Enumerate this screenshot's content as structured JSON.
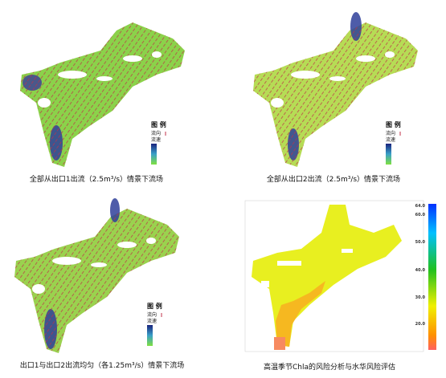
{
  "panels": [
    {
      "caption": "全部从出口1出流（2.5m³/s）情景下流场",
      "legend_title": "图 例",
      "legend_direction": "流向",
      "legend_speed": "流速"
    },
    {
      "caption": "全部从出口2出流（2.5m³/s）情景下流场",
      "legend_title": "图 例",
      "legend_direction": "流向",
      "legend_speed": "流速"
    },
    {
      "caption": "出口1与出口2出流均匀（各1.25m³/s）情景下流场",
      "legend_title": "图 例",
      "legend_direction": "流向",
      "legend_speed": "流速"
    },
    {
      "caption": "高温季节Chla的风险分析与水华风险评估",
      "colorbar_ticks": [
        "64.0",
        "60.0",
        "50.0",
        "40.0",
        "30.0",
        "20.0"
      ]
    }
  ]
}
